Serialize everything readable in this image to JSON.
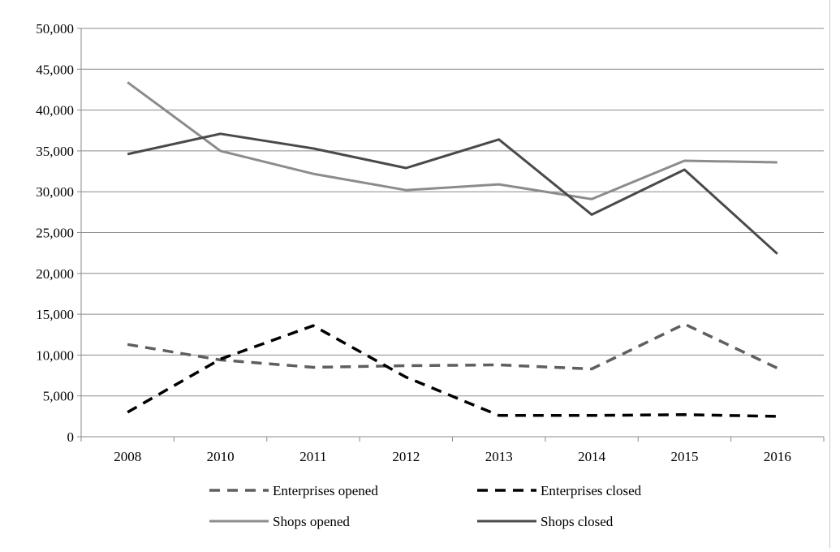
{
  "chart_data": {
    "type": "line",
    "title": "",
    "xlabel": "",
    "ylabel": "",
    "categories": [
      "2008",
      "2010",
      "2011",
      "2012",
      "2013",
      "2014",
      "2015",
      "2016"
    ],
    "ylim": [
      0,
      50000
    ],
    "yticks": [
      0,
      5000,
      10000,
      15000,
      20000,
      25000,
      30000,
      35000,
      40000,
      45000,
      50000
    ],
    "ytick_labels": [
      "0",
      "5,000",
      "10,000",
      "15,000",
      "20,000",
      "25,000",
      "30,000",
      "35,000",
      "40,000",
      "45,000",
      "50,000"
    ],
    "grid": true,
    "legend_position": "bottom",
    "series": [
      {
        "name": "Enterprises opened",
        "color": "#5f5f5f",
        "style": "dashed",
        "values": [
          11300,
          9400,
          8500,
          8700,
          8800,
          8300,
          13800,
          8400
        ]
      },
      {
        "name": "Enterprises closed",
        "color": "#000000",
        "style": "dashed",
        "values": [
          3000,
          9500,
          13600,
          7300,
          2600,
          2600,
          2700,
          2500
        ]
      },
      {
        "name": "Shops  opened",
        "color": "#8c8c8c",
        "style": "solid",
        "values": [
          43400,
          35000,
          32200,
          30200,
          30900,
          29100,
          33800,
          33600
        ]
      },
      {
        "name": "Shops  closed",
        "color": "#4a4a4a",
        "style": "solid",
        "values": [
          34600,
          37100,
          35300,
          32900,
          36400,
          27200,
          32700,
          22400
        ]
      }
    ]
  }
}
